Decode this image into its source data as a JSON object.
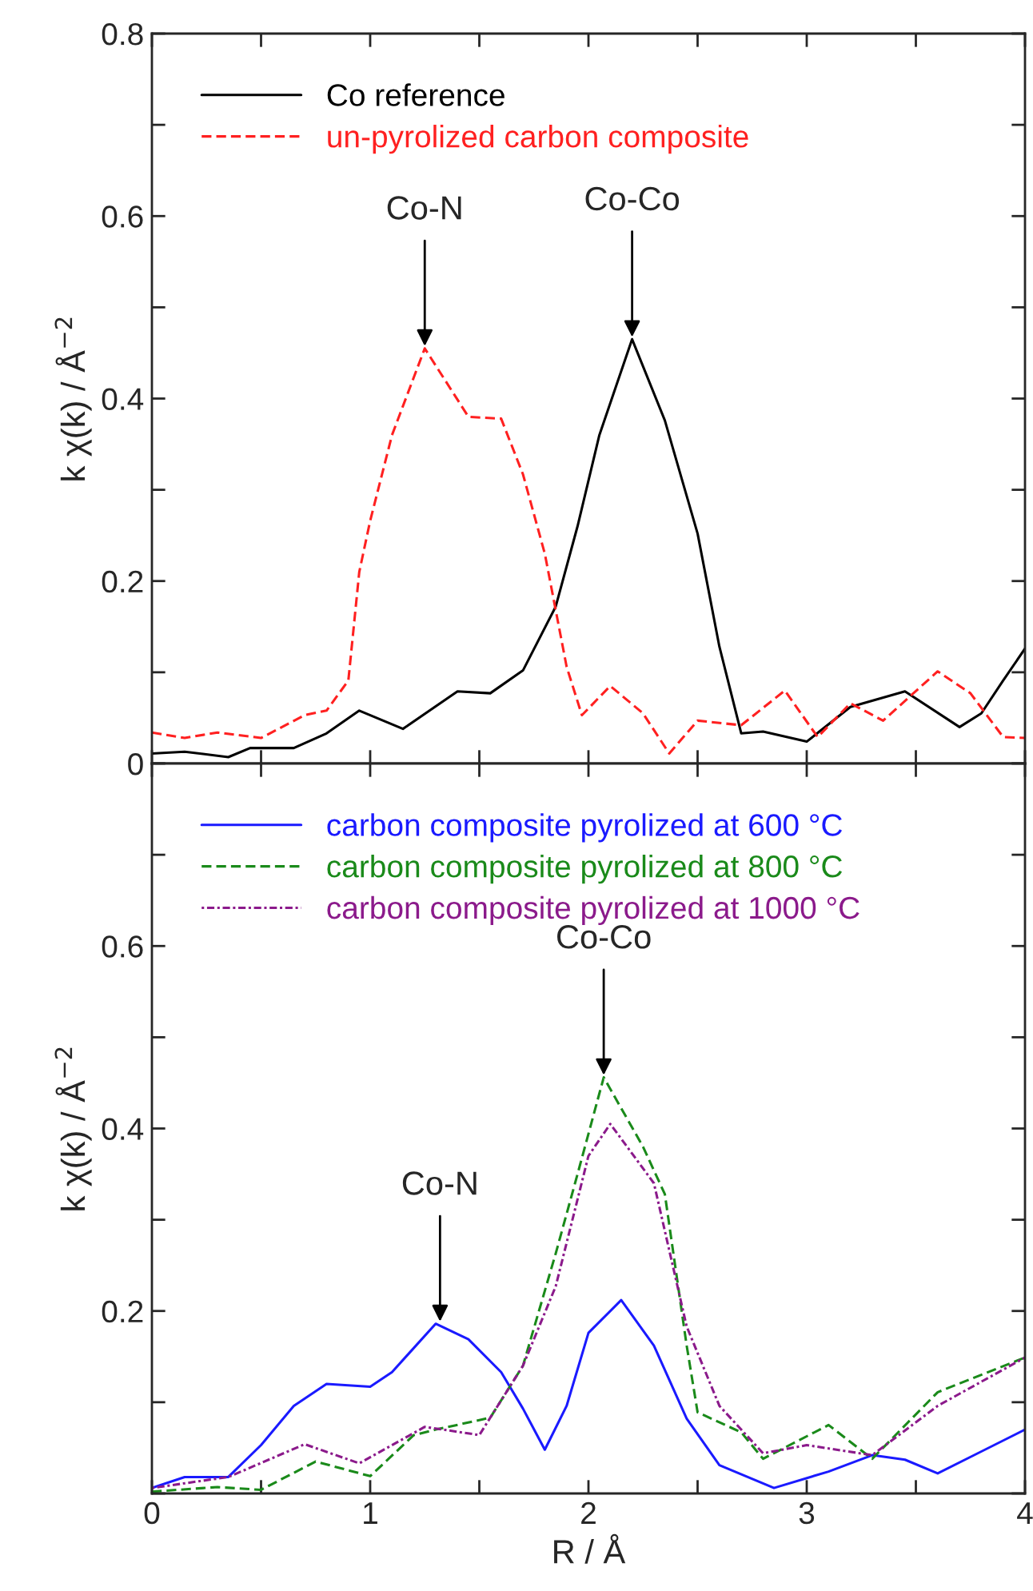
{
  "chart_data": [
    {
      "type": "line",
      "ylabel": "k χ(k) / Å$^{−2}$",
      "xlim": [
        0,
        4
      ],
      "ylim": [
        0,
        0.8
      ],
      "xticks": [
        {
          "value": 0,
          "label": null
        },
        {
          "value": 0.5,
          "label": null
        },
        {
          "value": 1,
          "label": null
        },
        {
          "value": 1.5,
          "label": null
        },
        {
          "value": 2,
          "label": null
        },
        {
          "value": 2.5,
          "label": null
        },
        {
          "value": 3,
          "label": null
        },
        {
          "value": 3.5,
          "label": null
        },
        {
          "value": 4,
          "label": null
        }
      ],
      "yticks": [
        0,
        {
          "value": 0.1,
          "label": null
        },
        0.2,
        {
          "value": 0.3,
          "label": null
        },
        0.4,
        {
          "value": 0.5,
          "label": null
        },
        0.6,
        {
          "value": 0.7,
          "label": null
        },
        0.8
      ],
      "tick_labels": "y",
      "legend": "top left",
      "grid": false,
      "marker": "none",
      "annotations": [
        {
          "text": "Co-N",
          "x": 1.25,
          "y": 0.455
        },
        {
          "text": "Co-Co",
          "x": 2.2,
          "y": 0.465
        }
      ],
      "series": [
        {
          "name": "Co reference",
          "color": "#000000",
          "line_style": "solid",
          "x": [
            0,
            0.15,
            0.35,
            0.45,
            0.65,
            0.8,
            0.95,
            1.15,
            1.4,
            1.55,
            1.7,
            1.85,
            1.95,
            2.05,
            2.2,
            2.35,
            2.5,
            2.6,
            2.7,
            2.8,
            3.0,
            3.2,
            3.45,
            3.7,
            3.8,
            3.9,
            4.0
          ],
          "values": [
            0.011,
            0.013,
            0.007,
            0.017,
            0.017,
            0.033,
            0.058,
            0.038,
            0.079,
            0.077,
            0.102,
            0.172,
            0.26,
            0.36,
            0.465,
            0.376,
            0.252,
            0.128,
            0.033,
            0.035,
            0.024,
            0.062,
            0.079,
            0.04,
            0.055,
            0.091,
            0.126
          ]
        },
        {
          "name": "un-pyrolized carbon composite",
          "color": "#ff2020",
          "line_style": "dashed",
          "x": [
            0,
            0.15,
            0.3,
            0.5,
            0.7,
            0.8,
            0.9,
            0.95,
            1.0,
            1.1,
            1.25,
            1.45,
            1.6,
            1.7,
            1.8,
            1.9,
            1.97,
            2.1,
            2.25,
            2.37,
            2.5,
            2.7,
            2.9,
            3.05,
            3.2,
            3.35,
            3.6,
            3.75,
            3.9,
            4.0
          ],
          "values": [
            0.034,
            0.028,
            0.034,
            0.028,
            0.053,
            0.058,
            0.091,
            0.21,
            0.266,
            0.36,
            0.455,
            0.38,
            0.378,
            0.317,
            0.23,
            0.106,
            0.053,
            0.085,
            0.055,
            0.011,
            0.047,
            0.042,
            0.08,
            0.029,
            0.066,
            0.047,
            0.101,
            0.077,
            0.029,
            0.028
          ]
        }
      ]
    },
    {
      "type": "line",
      "xlabel": "R / Å",
      "ylabel": "k χ(k) / Å$^{−2}$",
      "xlim": [
        0,
        4
      ],
      "ylim": [
        0,
        0.8
      ],
      "xticks": [
        0,
        {
          "value": 0.5,
          "label": null
        },
        1,
        {
          "value": 1.5,
          "label": null
        },
        2,
        {
          "value": 2.5,
          "label": null
        },
        3,
        {
          "value": 3.5,
          "label": null
        },
        4
      ],
      "yticks": [
        {
          "value": 0,
          "label": null
        },
        {
          "value": 0.1,
          "label": null
        },
        0.2,
        {
          "value": 0.3,
          "label": null
        },
        0.4,
        {
          "value": 0.5,
          "label": null
        },
        0.6,
        {
          "value": 0.7,
          "label": null
        },
        {
          "value": 0.8,
          "label": null
        }
      ],
      "legend": "top left",
      "grid": false,
      "marker": "none",
      "annotations": [
        {
          "text": "Co-N",
          "x": 1.32,
          "y": 0.186
        },
        {
          "text": "Co-Co",
          "x": 2.07,
          "y": 0.456
        }
      ],
      "series": [
        {
          "name": "carbon composite pyrolized at 600 °C",
          "color": "#1a1aff",
          "line_style": "solid",
          "x": [
            0,
            0.15,
            0.35,
            0.5,
            0.65,
            0.8,
            1.0,
            1.1,
            1.3,
            1.45,
            1.6,
            1.7,
            1.8,
            1.9,
            2.0,
            2.15,
            2.3,
            2.45,
            2.6,
            2.85,
            3.1,
            3.3,
            3.45,
            3.6,
            3.8,
            4.0
          ],
          "values": [
            0.006,
            0.018,
            0.018,
            0.053,
            0.096,
            0.12,
            0.117,
            0.133,
            0.186,
            0.169,
            0.133,
            0.093,
            0.048,
            0.096,
            0.176,
            0.212,
            0.162,
            0.082,
            0.031,
            0.006,
            0.024,
            0.042,
            0.037,
            0.022,
            0.046,
            0.07
          ]
        },
        {
          "name": "carbon composite pyrolized at 800 °C",
          "color": "#1a8a1a",
          "line_style": "dashed",
          "x": [
            0,
            0.3,
            0.5,
            0.75,
            1.0,
            1.2,
            1.3,
            1.55,
            1.7,
            1.85,
            1.95,
            2.07,
            2.25,
            2.35,
            2.45,
            2.5,
            2.7,
            2.8,
            3.1,
            3.3,
            3.6,
            4.0
          ],
          "values": [
            0.002,
            0.007,
            0.004,
            0.035,
            0.019,
            0.064,
            0.07,
            0.083,
            0.14,
            0.263,
            0.35,
            0.456,
            0.38,
            0.328,
            0.162,
            0.089,
            0.067,
            0.038,
            0.075,
            0.038,
            0.111,
            0.149
          ]
        },
        {
          "name": "carbon composite pyrolized at 1000 °C",
          "color": "#8b1a8b",
          "line_style": "dotted",
          "x": [
            0,
            0.35,
            0.7,
            0.95,
            1.25,
            1.5,
            1.7,
            1.85,
            2.0,
            2.1,
            2.3,
            2.45,
            2.6,
            2.8,
            3.0,
            3.3,
            3.6,
            4.0
          ],
          "values": [
            0.006,
            0.018,
            0.054,
            0.033,
            0.073,
            0.064,
            0.14,
            0.227,
            0.37,
            0.405,
            0.34,
            0.183,
            0.096,
            0.044,
            0.053,
            0.042,
            0.096,
            0.149
          ]
        }
      ]
    }
  ]
}
